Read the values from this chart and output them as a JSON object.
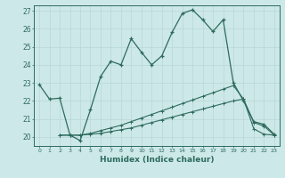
{
  "xlabel": "Humidex (Indice chaleur)",
  "bg_color": "#cde8e8",
  "line_color": "#2d6b5e",
  "grid_color": "#b8d8d8",
  "xlim": [
    -0.5,
    23.5
  ],
  "ylim": [
    19.5,
    27.3
  ],
  "yticks": [
    20,
    21,
    22,
    23,
    24,
    25,
    26,
    27
  ],
  "xticks": [
    0,
    1,
    2,
    3,
    4,
    5,
    6,
    7,
    8,
    9,
    10,
    11,
    12,
    13,
    14,
    15,
    16,
    17,
    18,
    19,
    20,
    21,
    22,
    23
  ],
  "curve1_x": [
    0,
    1,
    2,
    3,
    4,
    5,
    6,
    7,
    8,
    9,
    10,
    11,
    12,
    13,
    14,
    15,
    16,
    17,
    18,
    19,
    20,
    21,
    22,
    23
  ],
  "curve1_y": [
    22.9,
    22.1,
    22.15,
    20.1,
    19.8,
    21.5,
    23.35,
    24.2,
    24.0,
    25.45,
    24.7,
    24.0,
    24.5,
    25.8,
    26.85,
    27.05,
    26.5,
    25.85,
    26.5,
    23.0,
    22.0,
    20.85,
    20.7,
    20.15
  ],
  "curve2_x": [
    2,
    3,
    4,
    5,
    6,
    7,
    8,
    9,
    10,
    11,
    12,
    13,
    14,
    15,
    16,
    17,
    18,
    19,
    20,
    21,
    22,
    23
  ],
  "curve2_y": [
    20.1,
    20.1,
    20.1,
    20.2,
    20.35,
    20.5,
    20.65,
    20.85,
    21.05,
    21.25,
    21.45,
    21.65,
    21.85,
    22.05,
    22.25,
    22.45,
    22.65,
    22.85,
    22.1,
    20.8,
    20.6,
    20.1
  ],
  "curve3_x": [
    2,
    3,
    4,
    5,
    6,
    7,
    8,
    9,
    10,
    11,
    12,
    13,
    14,
    15,
    16,
    17,
    18,
    19,
    20,
    21,
    22,
    23
  ],
  "curve3_y": [
    20.1,
    20.1,
    20.1,
    20.15,
    20.2,
    20.3,
    20.4,
    20.5,
    20.65,
    20.8,
    20.95,
    21.1,
    21.25,
    21.4,
    21.55,
    21.7,
    21.85,
    22.0,
    22.1,
    20.45,
    20.15,
    20.1
  ]
}
